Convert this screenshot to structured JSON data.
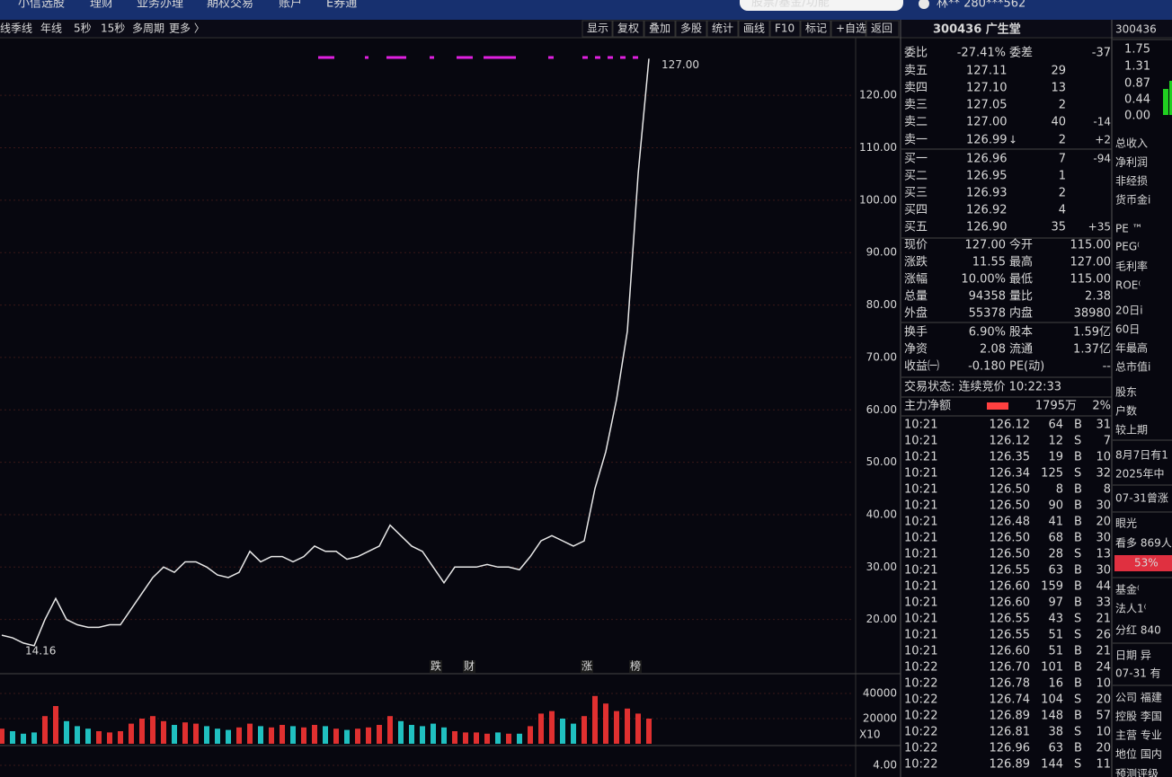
{
  "menu": [
    "小信选股",
    "理财",
    "业务办理",
    "期权交易",
    "账户",
    "E券通"
  ],
  "search_placeholder": "股票/基金/功能",
  "user": "林** 280***562",
  "toolbar_left": [
    "线",
    "季线",
    "年线",
    "5秒",
    "15秒",
    "多周期",
    "更多 〉"
  ],
  "toolbar_right": [
    "显示",
    "复权",
    "叠加",
    "多股",
    "统计",
    "画线",
    "F10",
    "标记",
    "+自选",
    "返回"
  ],
  "chart_data": [
    {
      "type": "line",
      "color": "#e8e8e8",
      "ylim": [
        10,
        131
      ],
      "yticks": [
        {
          "value": 120,
          "label": "120.00"
        },
        {
          "value": 110,
          "label": "110.00"
        },
        {
          "value": 100,
          "label": "100.00"
        },
        {
          "value": 90,
          "label": "90.00"
        },
        {
          "value": 80,
          "label": "80.00"
        },
        {
          "value": 70,
          "label": "70.00"
        },
        {
          "value": 60,
          "label": "60.00"
        },
        {
          "value": 50,
          "label": "50.00"
        },
        {
          "value": 40,
          "label": "40.00"
        },
        {
          "value": 30,
          "label": "30.00"
        },
        {
          "value": 20,
          "label": "20.00"
        }
      ],
      "values": [
        17,
        16.5,
        15.5,
        15,
        20,
        24,
        20,
        19,
        18.5,
        18.5,
        19,
        19,
        22,
        25,
        28,
        30,
        29,
        31,
        31,
        30,
        28.5,
        28,
        29,
        33,
        31,
        32,
        32,
        31,
        32,
        34,
        33,
        33,
        31.5,
        32,
        33,
        34,
        38,
        36,
        34,
        33,
        30,
        27,
        30,
        30,
        30,
        30.5,
        30,
        30,
        29.5,
        32,
        35,
        36,
        35,
        34,
        35,
        45,
        52,
        62,
        75,
        105,
        127
      ],
      "high_label": "127.00",
      "low_label": "14.16",
      "events": [
        "跌",
        "财",
        "涨",
        "榜"
      ]
    },
    {
      "type": "bar",
      "ylim": [
        0,
        54300
      ],
      "yticks": [
        40000,
        20000
      ],
      "scale_label": "X10",
      "values": [
        12000,
        10000,
        8000,
        9000,
        22000,
        30000,
        18000,
        14000,
        12000,
        10000,
        9000,
        10000,
        16000,
        20000,
        22000,
        18000,
        15000,
        17000,
        16000,
        14000,
        12000,
        11000,
        13000,
        16000,
        14000,
        13000,
        15000,
        14000,
        13000,
        15000,
        14000,
        12000,
        11000,
        12000,
        13000,
        15000,
        22000,
        18000,
        15000,
        14000,
        16000,
        13000,
        10000,
        9000,
        9000,
        8000,
        9000,
        8000,
        8000,
        14000,
        24000,
        26000,
        20000,
        16000,
        22000,
        38000,
        32000,
        26000,
        28000,
        24000,
        20000
      ]
    },
    {
      "type": "line",
      "ylim": [
        3.2,
        5.23
      ],
      "yticks": [
        {
          "value": 4,
          "label": "4.00"
        }
      ]
    }
  ],
  "quote": {
    "title": "300436 广生堂",
    "committee": [
      "委比",
      "-27.41%",
      "委差",
      "-37"
    ],
    "order_book": [
      [
        "卖五",
        "127.11",
        "29"
      ],
      [
        "卖四",
        "127.10",
        "13"
      ],
      [
        "卖三",
        "127.05",
        "2"
      ],
      [
        "卖二",
        "127.00",
        "40",
        "-14"
      ],
      [
        "卖一",
        "126.99",
        "2",
        "+2"
      ],
      [
        "买一",
        "126.96",
        "7",
        "-94"
      ],
      [
        "买二",
        "126.95",
        "1"
      ],
      [
        "买三",
        "126.93",
        "2"
      ],
      [
        "买四",
        "126.92",
        "4"
      ],
      [
        "买五",
        "126.90",
        "35",
        "+35"
      ]
    ],
    "order_book_arrow": "↓",
    "stats": [
      [
        "现价",
        "127.00",
        "今开",
        "115.00"
      ],
      [
        "涨跌",
        "11.55",
        "最高",
        "127.00"
      ],
      [
        "涨幅",
        "10.00%",
        "最低",
        "115.00"
      ],
      [
        "总量",
        "94358",
        "量比",
        "2.38"
      ],
      [
        "外盘",
        "55378",
        "内盘",
        "38980"
      ],
      [
        "换手",
        "6.90%",
        "股本",
        "1.59亿"
      ],
      [
        "净资",
        "2.08",
        "流通",
        "1.37亿"
      ],
      [
        "收益㈠",
        "-0.180",
        "PE(动)",
        "--"
      ]
    ],
    "status": "交易状态: 连续竞价 10:22:33",
    "main_flow": [
      "主力净额",
      "1795万",
      "2%"
    ],
    "ticks": [
      [
        "10:21",
        "126.12",
        "64",
        "B",
        "31"
      ],
      [
        "10:21",
        "126.12",
        "12",
        "S",
        "7"
      ],
      [
        "10:21",
        "126.35",
        "19",
        "B",
        "10"
      ],
      [
        "10:21",
        "126.34",
        "125",
        "S",
        "32"
      ],
      [
        "10:21",
        "126.50",
        "8",
        "B",
        "8"
      ],
      [
        "10:21",
        "126.50",
        "90",
        "B",
        "30"
      ],
      [
        "10:21",
        "126.48",
        "41",
        "B",
        "20"
      ],
      [
        "10:21",
        "126.50",
        "68",
        "B",
        "30"
      ],
      [
        "10:21",
        "126.50",
        "28",
        "S",
        "13"
      ],
      [
        "10:21",
        "126.55",
        "63",
        "B",
        "30"
      ],
      [
        "10:21",
        "126.60",
        "159",
        "B",
        "44"
      ],
      [
        "10:21",
        "126.60",
        "97",
        "B",
        "33"
      ],
      [
        "10:21",
        "126.55",
        "43",
        "S",
        "21"
      ],
      [
        "10:21",
        "126.55",
        "51",
        "S",
        "26"
      ],
      [
        "10:21",
        "126.60",
        "51",
        "B",
        "21"
      ],
      [
        "10:22",
        "126.70",
        "101",
        "B",
        "24"
      ],
      [
        "10:22",
        "126.78",
        "16",
        "B",
        "10"
      ],
      [
        "10:22",
        "126.74",
        "104",
        "S",
        "20"
      ],
      [
        "10:22",
        "126.89",
        "148",
        "B",
        "57"
      ],
      [
        "10:22",
        "126.81",
        "38",
        "S",
        "10"
      ],
      [
        "10:22",
        "126.96",
        "63",
        "B",
        "20"
      ],
      [
        "10:22",
        "126.89",
        "144",
        "S",
        "11"
      ]
    ]
  },
  "side_panel": [
    "300436",
    "1.75",
    "1.31",
    "0.87",
    "0.44",
    "0.00",
    "总收入",
    "净利润",
    "非经损",
    "货币金i",
    "PE ™",
    "PEG⁽",
    "毛利率",
    "ROE⁽",
    "20日i",
    "60日",
    "年最高",
    "总市值i",
    "股东",
    "户数",
    "较上期",
    "8月7日有1",
    "2025年中",
    "07-31曾涨",
    "眼光",
    "看多 869人",
    "53%",
    "基金⁽",
    "法人1⁽",
    "分红 840",
    "日期 异",
    "07-31 有",
    "公司 福建",
    "控股 李国",
    "主营 专业",
    "地位 国内",
    "预测评级"
  ]
}
